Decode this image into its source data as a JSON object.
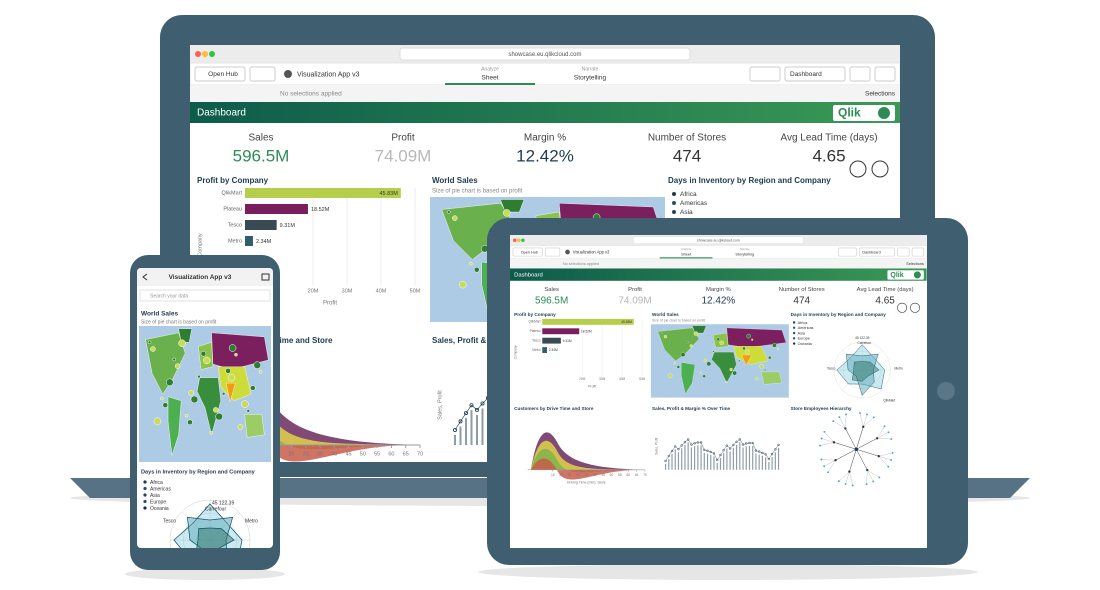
{
  "browser": {
    "url": "showcase.eu.qlikcloud.com"
  },
  "toolbar": {
    "open_hub": "Open Hub",
    "app_title": "Visualization App v3",
    "tabs": [
      {
        "label": "Analyze",
        "name": "Sheet"
      },
      {
        "label": "Narrate",
        "name": "Storytelling"
      }
    ],
    "sheet": "Dashboard"
  },
  "selections_bar": {
    "status": "No selections applied",
    "button": "Selections"
  },
  "header": {
    "title": "Dashboard",
    "logo": "Qlik"
  },
  "kpis": [
    {
      "label": "Sales",
      "value": "596.5M",
      "color": "#2e8b57"
    },
    {
      "label": "Profit",
      "value": "74.09M",
      "color": "#b8b8b8"
    },
    {
      "label": "Margin %",
      "value": "12.42%",
      "color": "#1d3b4c"
    },
    {
      "label": "Number of Stores",
      "value": "474",
      "color": "#333333"
    },
    {
      "label": "Avg Lead Time (days)",
      "value": "4.65",
      "color": "#333333"
    }
  ],
  "profit_by_company": {
    "title": "Profit by Company",
    "y_axis_title": "Company",
    "x_axis_title": "Profit",
    "xlim": [
      0,
      50
    ],
    "xticks": [
      {
        "value": 20,
        "label": "20M"
      },
      {
        "value": 30,
        "label": "30M"
      },
      {
        "value": 40,
        "label": "40M"
      },
      {
        "value": 50,
        "label": "50M"
      }
    ],
    "bars": [
      {
        "category": "QlikMart",
        "value": 45.83,
        "value_label": "45.83M",
        "color": "#b5cf4b"
      },
      {
        "category": "Plateau",
        "value": 18.52,
        "value_label": "18.52M",
        "color": "#7a1f5e"
      },
      {
        "category": "Tesco",
        "value": 9.31,
        "value_label": "9.31M",
        "color": "#3a4a55"
      },
      {
        "category": "Metro",
        "value": 2.34,
        "value_label": "2.34M",
        "color": "#2f5e6b"
      }
    ]
  },
  "world_sales": {
    "title": "World Sales",
    "subtitle": "Size of pie chart is based on profit"
  },
  "days_in_inventory": {
    "title": "Days in Inventory by Region and Company",
    "legend": [
      {
        "name": "Africa",
        "color": "#1d3b4c"
      },
      {
        "name": "Americas",
        "color": "#2b4f63"
      },
      {
        "name": "Asia",
        "color": "#1f4a5a"
      },
      {
        "name": "Europe",
        "color": "#24586b"
      },
      {
        "name": "Oceania",
        "color": "#193242"
      }
    ],
    "labels": [
      "45 122.39",
      "Carrefour",
      "Tesco",
      "Metro",
      "QlikMart"
    ]
  },
  "customers_by_drive_time": {
    "title": "Customers by Drive Time and Store",
    "x_axis_title": "Driving Time (min), Store",
    "xlim": [
      0,
      70
    ],
    "xticks": [
      15,
      20,
      25,
      30,
      35,
      40,
      45,
      50,
      55,
      60,
      65,
      70
    ]
  },
  "sales_profit_margin": {
    "title": "Sales, Profit & Margin % Over Time",
    "y_axis_title": "Sales, Profit"
  },
  "store_employees": {
    "title": "Store Employees Hierarchy"
  },
  "phone": {
    "search": "Search your data"
  }
}
